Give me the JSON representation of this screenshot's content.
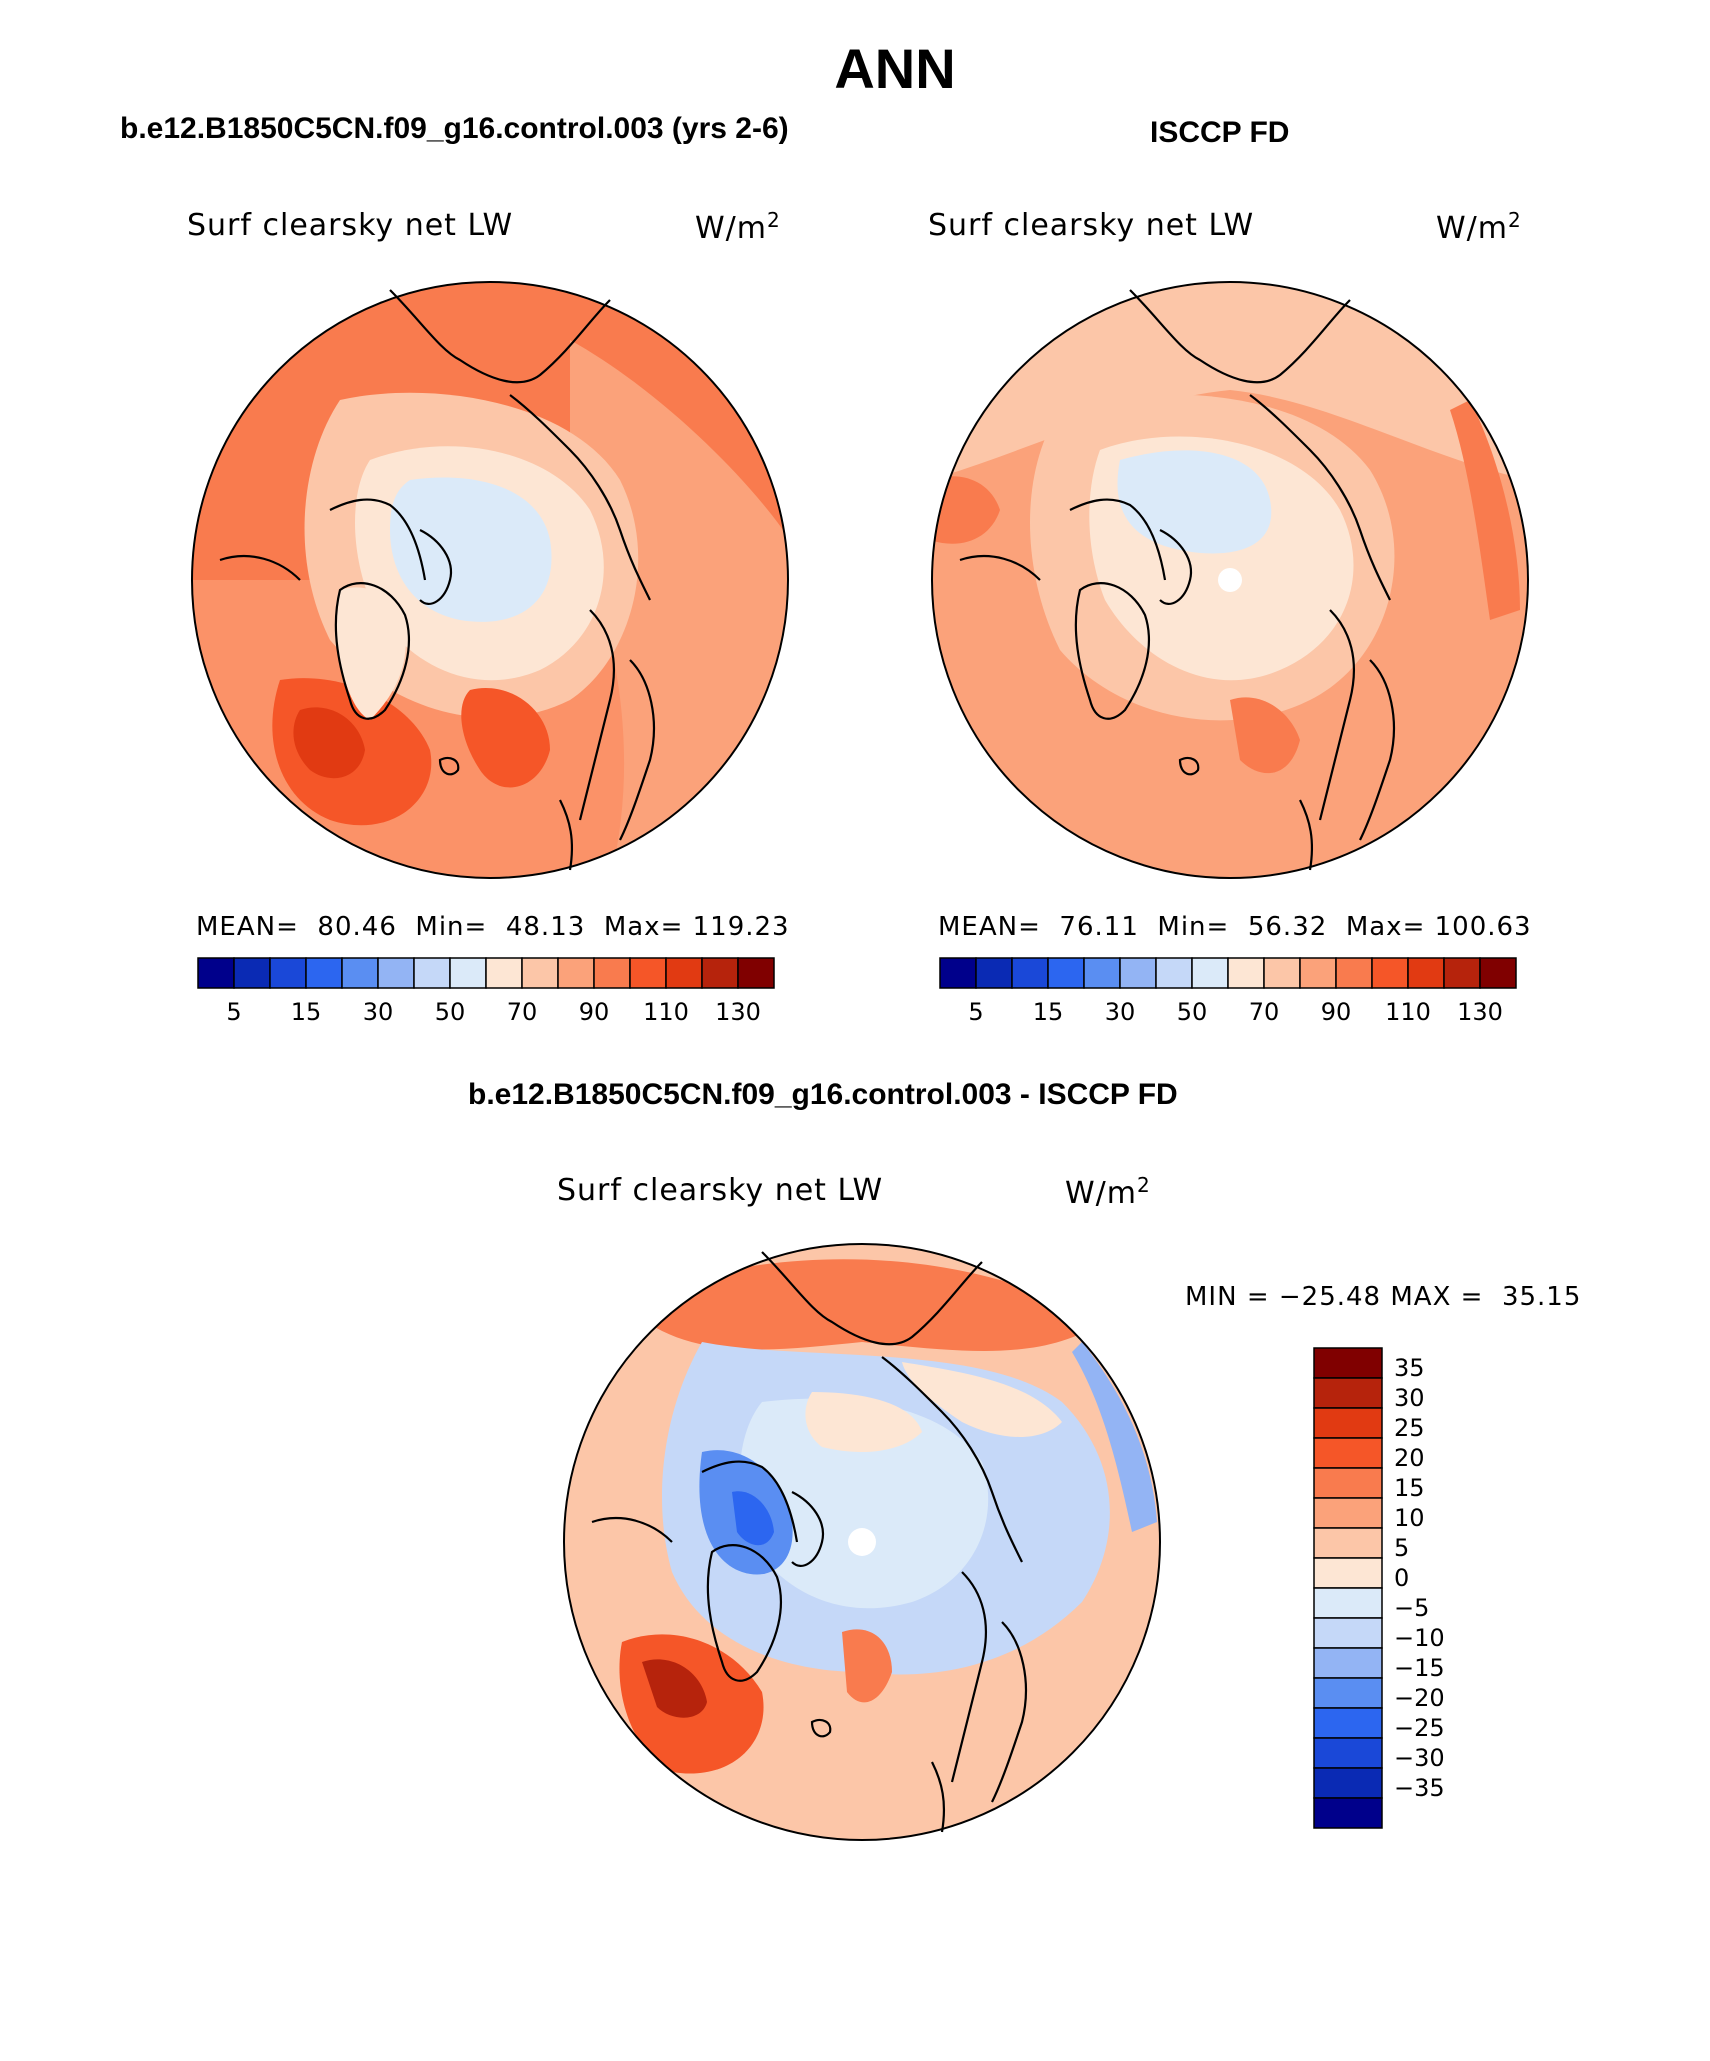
{
  "title": "ANN",
  "panels": [
    {
      "case": "b.e12.B1850C5CN.f09_g16.control.003 (yrs 2-6)",
      "variable": "Surf clearsky net LW",
      "units_base": "W/m",
      "units_exp": "2",
      "stats": {
        "mean_label": "MEAN=",
        "mean": "80.46",
        "min_label": "Min=",
        "min": "48.13",
        "max_label": "Max=",
        "max": "119.23"
      },
      "field": "model"
    },
    {
      "case": "ISCCP FD",
      "variable": "Surf clearsky net LW",
      "units_base": "W/m",
      "units_exp": "2",
      "stats": {
        "mean_label": "MEAN=",
        "mean": "76.11",
        "min_label": "Min=",
        "min": "56.32",
        "max_label": "Max=",
        "max": "100.63"
      },
      "field": "obs"
    }
  ],
  "abs_colorbar": {
    "colors": [
      "#00008b",
      "#0a2ab4",
      "#1a48d8",
      "#2c66f0",
      "#5a8ef2",
      "#93b4f4",
      "#c5d8f8",
      "#dbeaf9",
      "#fde6d4",
      "#fcc6a8",
      "#fba27a",
      "#f97b4e",
      "#f55628",
      "#e13a12",
      "#b6230c",
      "#800000"
    ],
    "tick_labels": [
      "5",
      "15",
      "30",
      "50",
      "70",
      "90",
      "110",
      "130"
    ]
  },
  "diff": {
    "title": "b.e12.B1850C5CN.f09_g16.control.003 - ISCCP FD",
    "variable": "Surf clearsky net LW",
    "units_base": "W/m",
    "units_exp": "2",
    "minmax_text": "MIN = −25.48 MAX =  35.15",
    "colorbar": {
      "colors_top_to_bottom": [
        "#800000",
        "#b6230c",
        "#e13a12",
        "#f55628",
        "#f97b4e",
        "#fba27a",
        "#fcc6a8",
        "#fde6d4",
        "#dbeaf9",
        "#c5d8f8",
        "#93b4f4",
        "#5a8ef2",
        "#2c66f0",
        "#1a48d8",
        "#0a2ab4",
        "#00008b"
      ],
      "tick_labels": [
        "35",
        "30",
        "25",
        "20",
        "15",
        "10",
        "5",
        "0",
        "−5",
        "−10",
        "−15",
        "−20",
        "−25",
        "−30",
        "−35"
      ]
    }
  }
}
